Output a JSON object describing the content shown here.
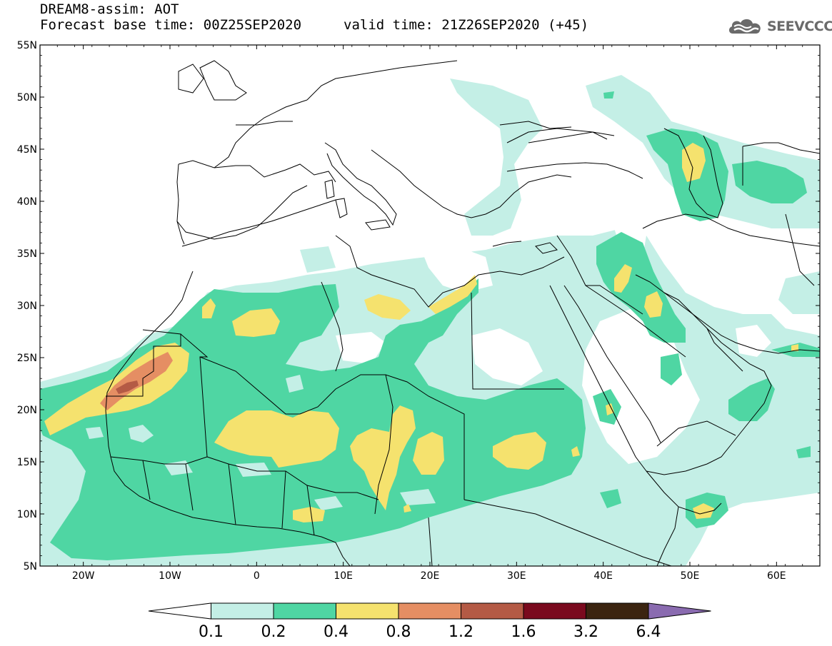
{
  "header": {
    "title_line1": "DREAM8-assim: AOT",
    "title_line2": "Forecast base time: 00Z25SEP2020",
    "valid_time": "valid time: 21Z26SEP2020 (+45)",
    "logo_text": "SEEVCCC"
  },
  "map": {
    "lon_range": [
      -25,
      65
    ],
    "lat_range": [
      5,
      55
    ],
    "lat_labels": [
      "5N",
      "10N",
      "15N",
      "20N",
      "25N",
      "30N",
      "35N",
      "40N",
      "45N",
      "50N",
      "55N"
    ],
    "lon_labels": [
      "20W",
      "10W",
      "0",
      "10E",
      "20E",
      "30E",
      "40E",
      "50E",
      "60E"
    ]
  },
  "colorbar": {
    "labels": [
      "0.1",
      "0.2",
      "0.4",
      "0.8",
      "1.2",
      "1.6",
      "3.2",
      "6.4"
    ],
    "colors": [
      "#c4efe6",
      "#4fd6a3",
      "#f5e26e",
      "#e58e63",
      "#b45a45",
      "#7a0a1e",
      "#3b2410",
      "#8a6bb0"
    ],
    "low_color": "#ffffff"
  }
}
